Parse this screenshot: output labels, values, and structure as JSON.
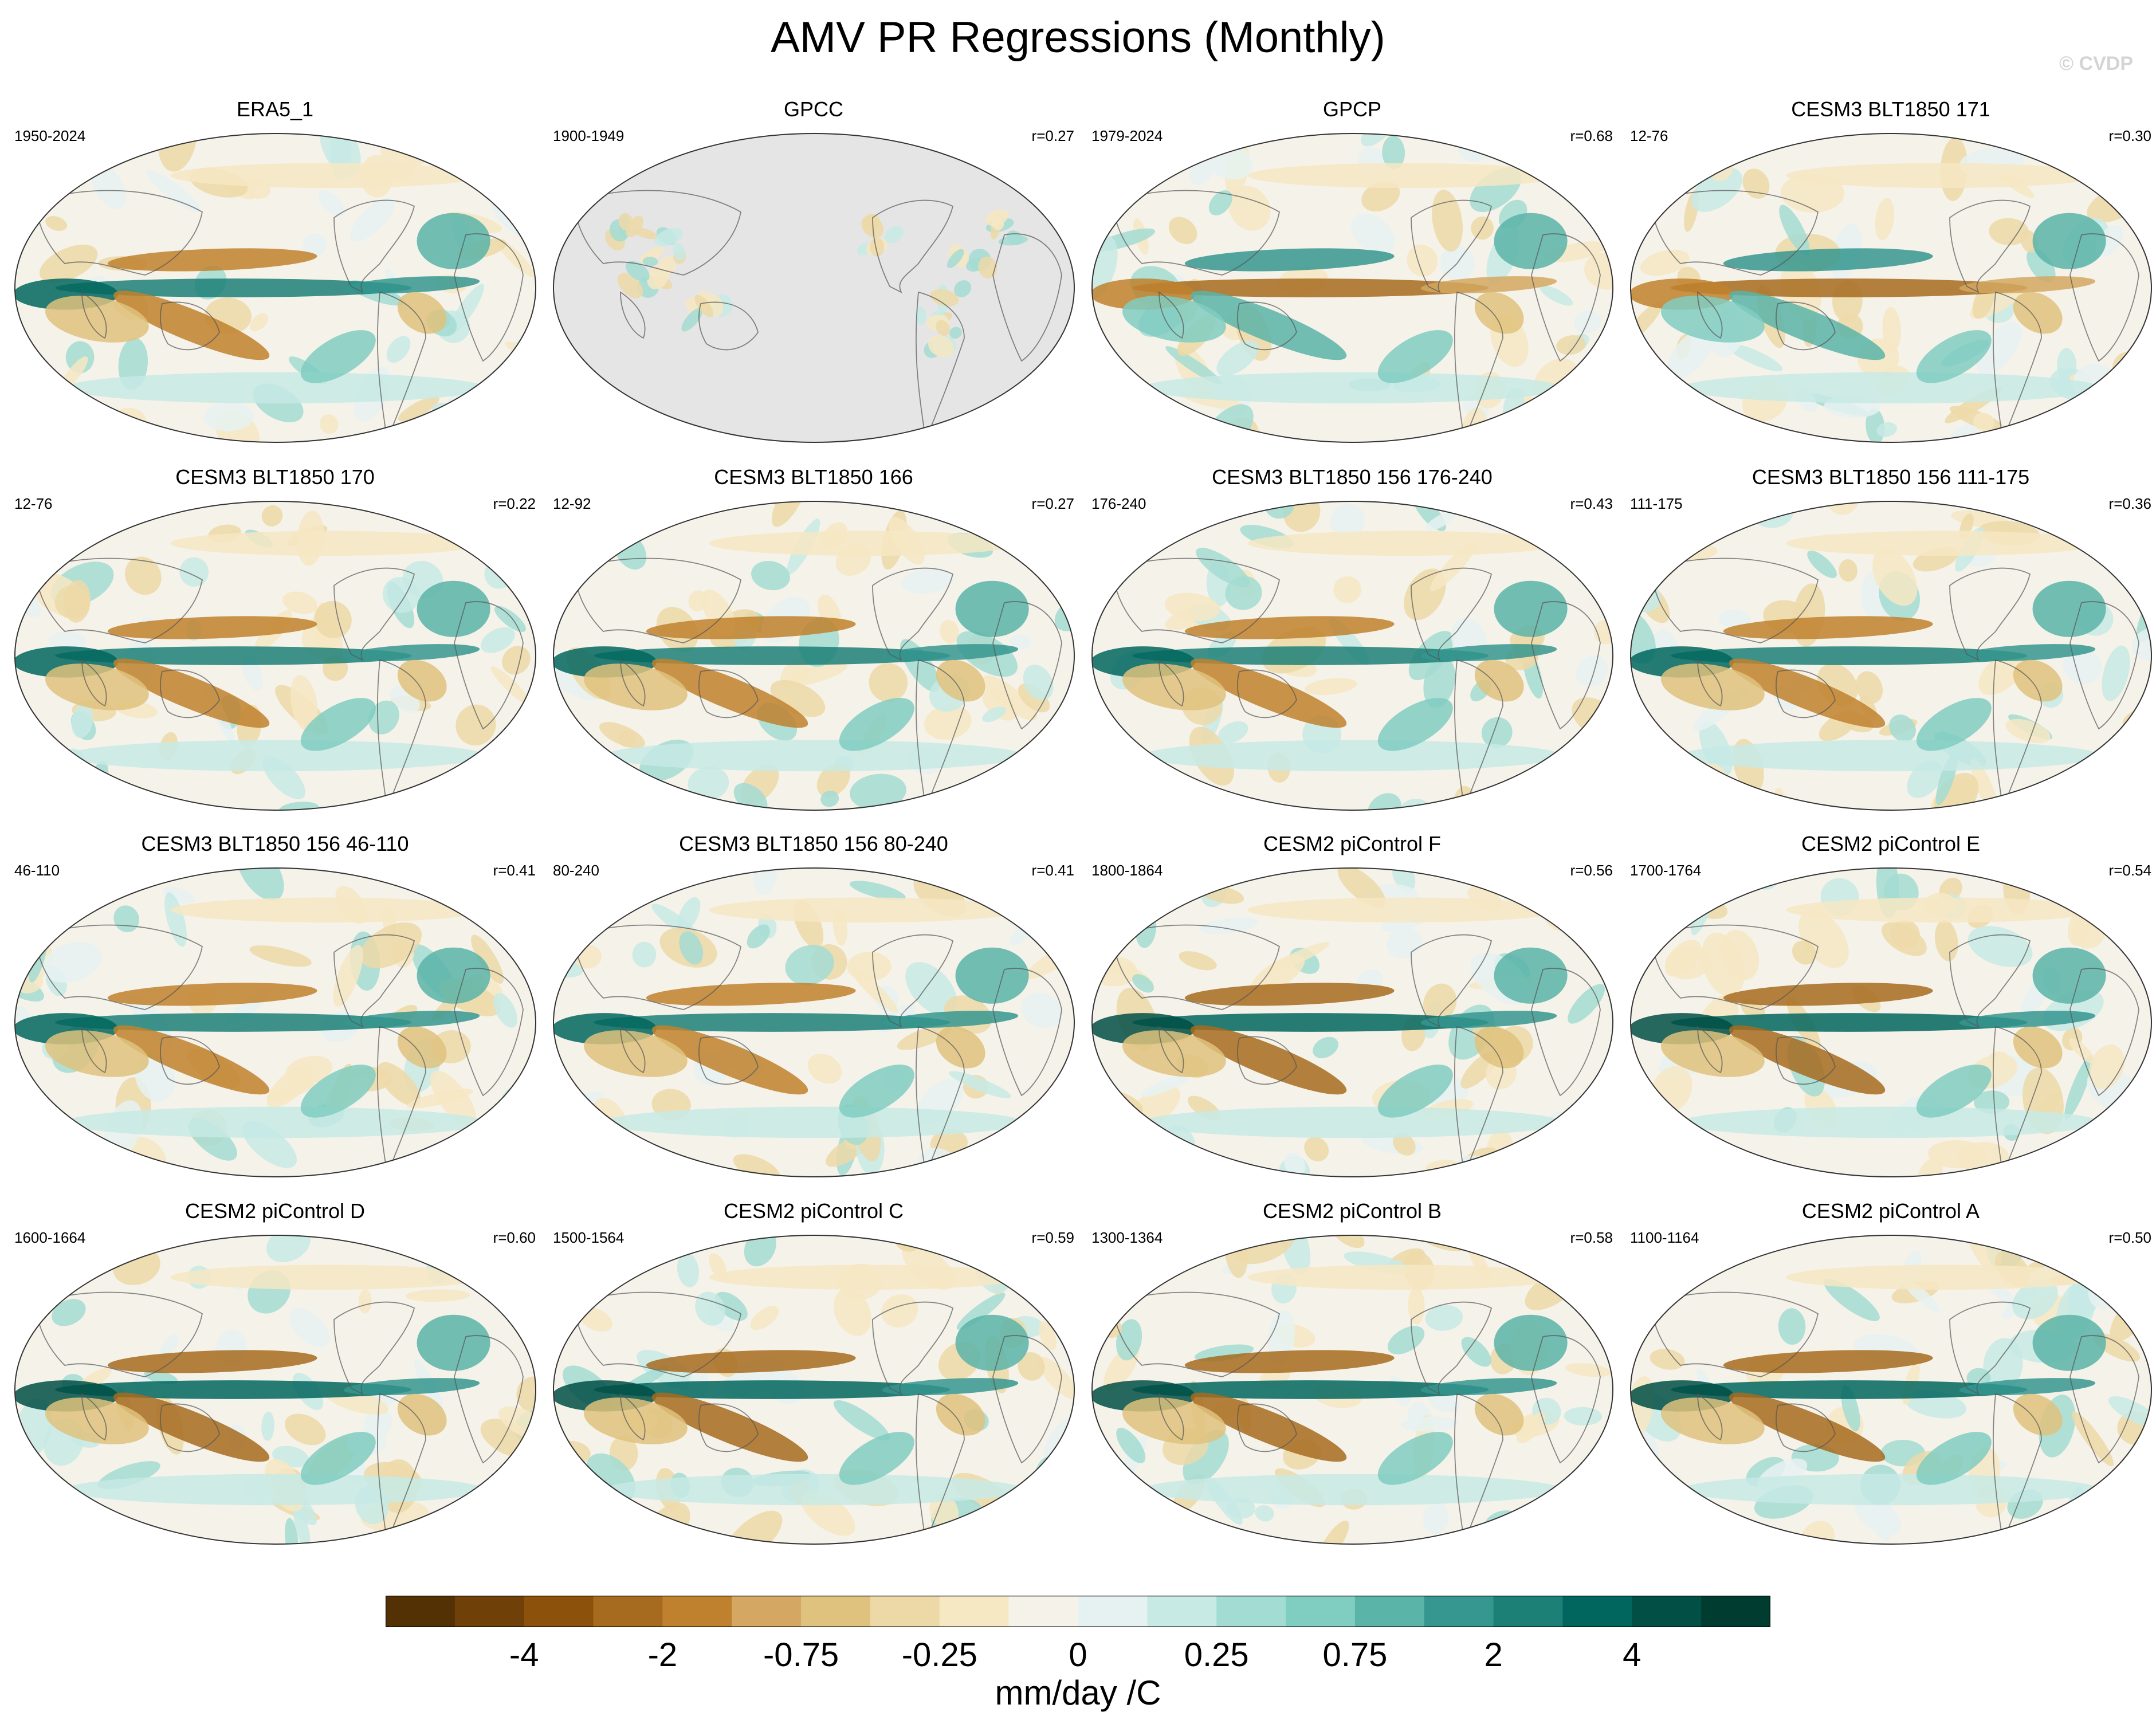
{
  "title": "AMV PR Regressions (Monthly)",
  "credit": "© CVDP",
  "chart_data": {
    "type": "heatmap",
    "description_units": "mm/day /C",
    "panels": [
      {
        "title": "ERA5_1",
        "years": "1950-2024",
        "r": ""
      },
      {
        "title": "GPCC",
        "years": "1900-1949",
        "r": "r=0.27"
      },
      {
        "title": "GPCP",
        "years": "1979-2024",
        "r": "r=0.68"
      },
      {
        "title": "CESM3 BLT1850 171",
        "years": "12-76",
        "r": "r=0.30"
      },
      {
        "title": "CESM3 BLT1850 170",
        "years": "12-76",
        "r": "r=0.22"
      },
      {
        "title": "CESM3 BLT1850 166",
        "years": "12-92",
        "r": "r=0.27"
      },
      {
        "title": "CESM3 BLT1850 156 176-240",
        "years": "176-240",
        "r": "r=0.43"
      },
      {
        "title": "CESM3 BLT1850 156 111-175",
        "years": "111-175",
        "r": "r=0.36"
      },
      {
        "title": "CESM3 BLT1850 156 46-110",
        "years": "46-110",
        "r": "r=0.41"
      },
      {
        "title": "CESM3 BLT1850 156 80-240",
        "years": "80-240",
        "r": "r=0.41"
      },
      {
        "title": "CESM2 piControl F",
        "years": "1800-1864",
        "r": "r=0.56"
      },
      {
        "title": "CESM2 piControl E",
        "years": "1700-1764",
        "r": "r=0.54"
      },
      {
        "title": "CESM2 piControl D",
        "years": "1600-1664",
        "r": "r=0.60"
      },
      {
        "title": "CESM2 piControl C",
        "years": "1500-1564",
        "r": "r=0.59"
      },
      {
        "title": "CESM2 piControl B",
        "years": "1300-1364",
        "r": "r=0.58"
      },
      {
        "title": "CESM2 piControl A",
        "years": "1100-1164",
        "r": "r=0.50"
      }
    ],
    "colorbar": {
      "label": "mm/day /C",
      "tick_labels": [
        "-4",
        "-2",
        "-0.75",
        "-0.25",
        "0",
        "0.25",
        "0.75",
        "2",
        "4"
      ],
      "colors": [
        "#543005",
        "#6f4008",
        "#8c510a",
        "#a66b1f",
        "#bf812d",
        "#d4a862",
        "#dfc27d",
        "#edd9a8",
        "#f6e8c3",
        "#f5f2ea",
        "#e6f2f1",
        "#c7eae5",
        "#a3dcd2",
        "#80cdc1",
        "#5ab4a8",
        "#35978f",
        "#1c8077",
        "#01665e",
        "#014f45",
        "#003c30"
      ]
    },
    "ocean_mask_color": "#e5e5e5"
  }
}
